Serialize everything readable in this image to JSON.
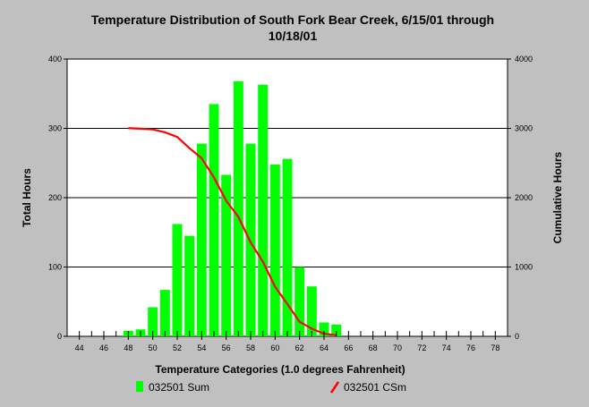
{
  "chart_data": {
    "type": "bar",
    "title_line1": "Temperature Distribution of South Fork Bear Creek, 6/15/01 through",
    "title_line2": "10/18/01",
    "xlabel": "Temperature Categories (1.0 degrees Fahrenheit)",
    "ylabel_left": "Total Hours",
    "ylabel_right": "Cumulative Hours",
    "xlim": [
      43,
      79
    ],
    "x_ticks": [
      44,
      46,
      48,
      50,
      52,
      54,
      56,
      58,
      60,
      62,
      64,
      66,
      68,
      70,
      72,
      74,
      76,
      78
    ],
    "ylim_left": [
      0,
      400
    ],
    "ylim_right": [
      0,
      4000
    ],
    "y_ticks_left": [
      0,
      100,
      200,
      300,
      400
    ],
    "y_ticks_right": [
      0,
      1000,
      2000,
      3000,
      4000
    ],
    "grid": true,
    "legend_position": "bottom",
    "series": [
      {
        "name": "032501 Sum",
        "kind": "bar",
        "color": "#00ff00",
        "x": [
          48,
          49,
          50,
          51,
          52,
          53,
          54,
          55,
          56,
          57,
          58,
          59,
          60,
          61,
          62,
          63,
          64,
          65
        ],
        "values": [
          8,
          10,
          42,
          67,
          162,
          145,
          278,
          335,
          233,
          368,
          278,
          363,
          248,
          256,
          100,
          72,
          20,
          17
        ]
      },
      {
        "name": "032501 CSm",
        "kind": "line",
        "color": "#ff0000",
        "x": [
          48,
          49,
          50,
          51,
          52,
          53,
          54,
          55,
          56,
          57,
          58,
          59,
          60,
          61,
          62,
          63,
          64,
          65
        ],
        "values": [
          3003,
          2995,
          2985,
          2943,
          2876,
          2714,
          2569,
          2291,
          1956,
          1723,
          1355,
          1077,
          714,
          466,
          210,
          110,
          38,
          17
        ]
      }
    ]
  }
}
